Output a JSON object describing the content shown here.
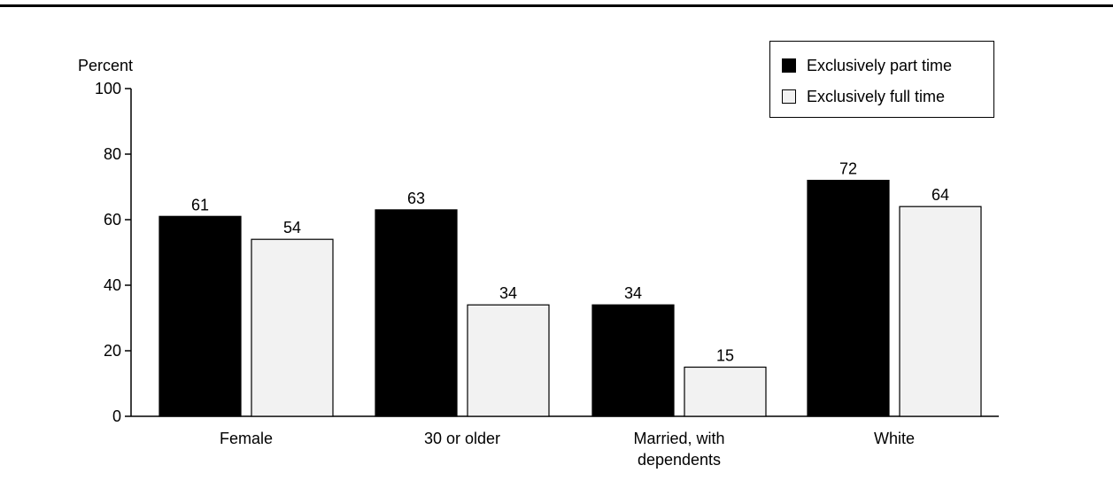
{
  "chart_data": {
    "type": "bar",
    "ylabel": "Percent",
    "xlabel": "",
    "ylim": [
      0,
      100
    ],
    "yticks": [
      0,
      20,
      40,
      60,
      80,
      100
    ],
    "categories": [
      [
        "Female"
      ],
      [
        "30 or older"
      ],
      [
        "Married, with",
        "dependents"
      ],
      [
        "White"
      ]
    ],
    "series": [
      {
        "name": "Exclusively part time",
        "color": "#000000",
        "values": [
          61,
          63,
          34,
          72
        ]
      },
      {
        "name": "Exclusively full time",
        "color": "#f2f2f2",
        "values": [
          54,
          34,
          15,
          64
        ]
      }
    ],
    "legend_position": "top-right",
    "grid": false
  }
}
